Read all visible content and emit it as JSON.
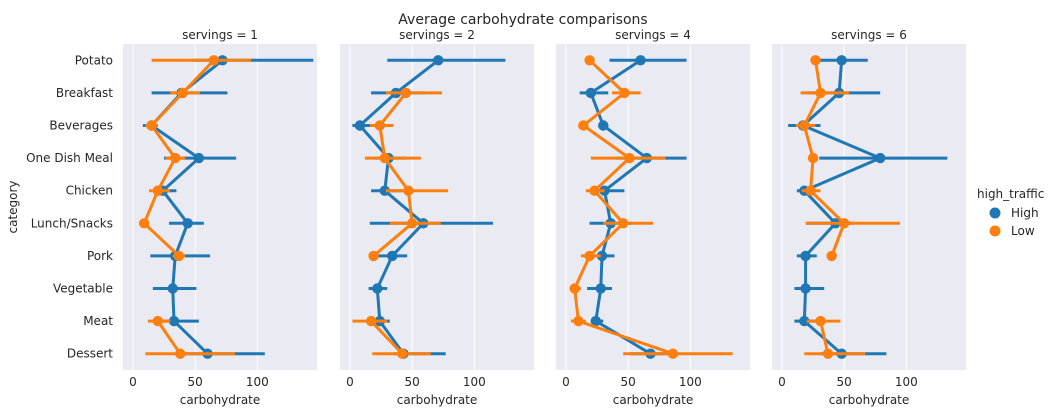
{
  "title": "Average carbohydrate comparisons",
  "chart_data": {
    "type": "pointplot",
    "title": "Average carbohydrate comparisons",
    "xlabel": "carbohydrate",
    "ylabel": "category",
    "categories": [
      "Potato",
      "Breakfast",
      "Beverages",
      "One Dish Meal",
      "Chicken",
      "Lunch/Snacks",
      "Pork",
      "Vegetable",
      "Meat",
      "Dessert"
    ],
    "xlim": [
      -8,
      148
    ],
    "xticks": [
      0,
      50,
      100
    ],
    "grid": true,
    "legend": {
      "title": "high_traffic",
      "placement": "right",
      "entries": [
        {
          "label": "High",
          "color": "#1f77b4"
        },
        {
          "label": "Low",
          "color": "#ff7f0e"
        }
      ]
    },
    "facets": [
      {
        "title": "servings = 1",
        "series": [
          {
            "name": "High",
            "color": "#1f77b4",
            "values": [
              72,
              39,
              15,
              53,
              24,
              44,
              34,
              32,
              33,
              60
            ],
            "ci": [
              [
                48,
                145
              ],
              [
                15,
                76
              ],
              [
                8,
                20
              ],
              [
                25,
                83
              ],
              [
                17,
                35
              ],
              [
                29,
                57
              ],
              [
                14,
                62
              ],
              [
                16,
                51
              ],
              [
                22,
                53
              ],
              [
                38,
                106
              ]
            ]
          },
          {
            "name": "Low",
            "color": "#ff7f0e",
            "values": [
              65,
              40,
              15,
              34,
              20,
              9,
              37,
              null,
              20,
              38
            ],
            "ci": [
              [
                15,
                95
              ],
              [
                30,
                54
              ],
              [
                10,
                20
              ],
              [
                26,
                42
              ],
              [
                13,
                30
              ],
              [
                null,
                null
              ],
              [
                32,
                42
              ],
              [
                null,
                null
              ],
              [
                12,
                30
              ],
              [
                10,
                82
              ]
            ]
          }
        ]
      },
      {
        "title": "servings = 2",
        "series": [
          {
            "name": "High",
            "color": "#1f77b4",
            "values": [
              71,
              37,
              8,
              31,
              28,
              59,
              34,
              22,
              24,
              43
            ],
            "ci": [
              [
                30,
                125
              ],
              [
                17,
                60
              ],
              [
                2,
                17
              ],
              [
                19,
                45
              ],
              [
                17,
                42
              ],
              [
                16,
                115
              ],
              [
                22,
                46
              ],
              [
                15,
                30
              ],
              [
                17,
                32
              ],
              [
                35,
                77
              ]
            ]
          },
          {
            "name": "Low",
            "color": "#ff7f0e",
            "values": [
              null,
              45,
              24,
              28,
              47,
              50,
              19,
              null,
              17,
              42
            ],
            "ci": [
              [
                null,
                null
              ],
              [
                29,
                74
              ],
              [
                16,
                35
              ],
              [
                12,
                57
              ],
              [
                29,
                79
              ],
              [
                32,
                73
              ],
              [
                null,
                null
              ],
              [
                null,
                null
              ],
              [
                2,
                30
              ],
              [
                18,
                65
              ]
            ]
          }
        ]
      },
      {
        "title": "servings = 4",
        "series": [
          {
            "name": "High",
            "color": "#1f77b4",
            "values": [
              60,
              20,
              30,
              65,
              31,
              36,
              29,
              28,
              24,
              68
            ],
            "ci": [
              [
                35,
                97
              ],
              [
                11,
                34
              ],
              [
                27,
                34
              ],
              [
                40,
                97
              ],
              [
                19,
                47
              ],
              [
                19,
                53
              ],
              [
                20,
                39
              ],
              [
                17,
                37
              ],
              [
                20,
                30
              ],
              [
                52,
                90
              ]
            ]
          },
          {
            "name": "Low",
            "color": "#ff7f0e",
            "values": [
              19,
              47,
              14,
              51,
              23,
              46,
              19,
              7,
              10,
              86
            ],
            "ci": [
              [
                null,
                null
              ],
              [
                37,
                60
              ],
              [
                10,
                18
              ],
              [
                20,
                80
              ],
              [
                16,
                31
              ],
              [
                30,
                70
              ],
              [
                12,
                28
              ],
              [
                4,
                12
              ],
              [
                4,
                16
              ],
              [
                46,
                134
              ]
            ]
          }
        ]
      },
      {
        "title": "servings = 6",
        "series": [
          {
            "name": "High",
            "color": "#1f77b4",
            "values": [
              48,
              46,
              17,
              79,
              18,
              43,
              19,
              19,
              18,
              48
            ],
            "ci": [
              [
                30,
                69
              ],
              [
                20,
                79
              ],
              [
                5,
                31
              ],
              [
                30,
                133
              ],
              [
                12,
                25
              ],
              [
                20,
                58
              ],
              [
                12,
                28
              ],
              [
                10,
                34
              ],
              [
                10,
                29
              ],
              [
                31,
                84
              ]
            ]
          },
          {
            "name": "Low",
            "color": "#ff7f0e",
            "values": [
              27,
              31,
              18,
              25,
              23,
              50,
              40,
              null,
              31,
              37
            ],
            "ci": [
              [
                null,
                null
              ],
              [
                15,
                54
              ],
              [
                11,
                27
              ],
              [
                null,
                null
              ],
              [
                16,
                31
              ],
              [
                19,
                95
              ],
              [
                null,
                null
              ],
              [
                null,
                null
              ],
              [
                20,
                47
              ],
              [
                18,
                67
              ]
            ]
          }
        ]
      }
    ]
  }
}
